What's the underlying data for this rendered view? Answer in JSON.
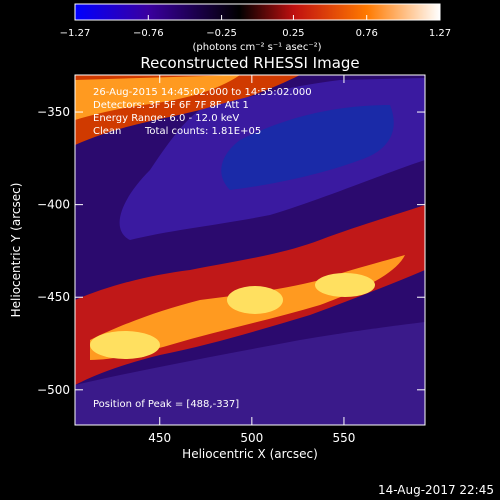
{
  "chart_data": {
    "type": "heatmap",
    "title": "Reconstructed RHESSI Image",
    "xlabel": "Heliocentric X (arcsec)",
    "ylabel": "Heliocentric Y (arcsec)",
    "xlim": [
      404,
      594
    ],
    "ylim": [
      -519,
      -330
    ],
    "x_ticks": [
      450,
      500,
      550
    ],
    "y_ticks": [
      -350,
      -400,
      -450,
      -500
    ],
    "colorbar": {
      "label": "(photons cm⁻² s⁻¹ asec⁻²)",
      "ticks": [
        -1.27,
        -0.76,
        -0.25,
        0.25,
        0.76,
        1.27
      ],
      "tick_labels": [
        "-1.27",
        "-0.76",
        "-0.25",
        "0.25",
        "0.76",
        "1.27"
      ],
      "colors": [
        "#0000ff",
        "#3a00a0",
        "#000000",
        "#c01010",
        "#ff7a00",
        "#ffffff"
      ]
    },
    "annotations": {
      "time": "26-Aug-2015 14:45:02.000 to 14:55:02.000",
      "detectors": "Detectors: 3F 5F 6F 7F 8F Att 1",
      "energy": "Energy Range: 6.0 - 12.0 keV",
      "method": "Clean",
      "counts": "Total counts: 1.81E+05",
      "peak": "Position of Peak = [488,-337]"
    },
    "bands": [
      {
        "name": "top bright ridge",
        "level": 0.85
      },
      {
        "name": "upper dark trough",
        "level": -0.9
      },
      {
        "name": "central bright ridge",
        "level": 0.95
      },
      {
        "name": "lower purple trough",
        "level": -0.6
      }
    ]
  },
  "footer": {
    "timestamp": "14-Aug-2017 22:45"
  }
}
